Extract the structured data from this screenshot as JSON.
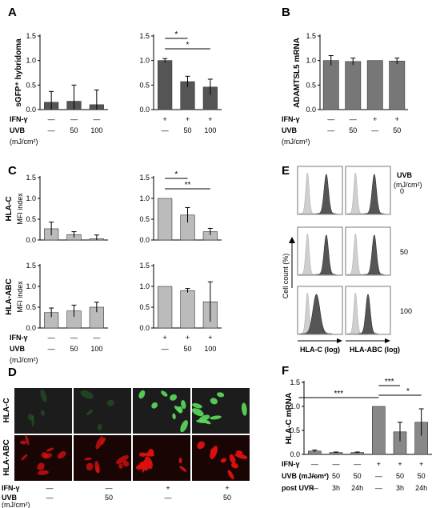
{
  "panels": {
    "A": "A",
    "B": "B",
    "C": "C",
    "D": "D",
    "E": "E",
    "F": "F"
  },
  "conditions": {
    "ifn": "IFN-γ",
    "uvb": "UVB",
    "unit": "(mJ/cm²)",
    "uvb_unit_inline": "UVB (mJ/cm²)",
    "post_uvr": "post UVR",
    "plus": "+",
    "minus": "—"
  },
  "panelA": {
    "ylabel": "sGFP⁺ hybridoma",
    "ticks": [
      "0.0",
      "0.5",
      "1.0",
      "1.5"
    ],
    "left_ifn": [
      "—",
      "—",
      "—"
    ],
    "left_uvb": [
      "—",
      "50",
      "100"
    ],
    "right_ifn": [
      "+",
      "+",
      "+"
    ],
    "right_uvb": [
      "—",
      "50",
      "100"
    ],
    "stars": [
      "*",
      "*"
    ]
  },
  "panelB": {
    "ylabel": "ADAMTSL5 mRNA",
    "ticks": [
      "0.0",
      "0.5",
      "1.0",
      "1.5"
    ],
    "ifn": [
      "—",
      "—",
      "+",
      "+"
    ],
    "uvb": [
      "—",
      "50",
      "—",
      "50"
    ]
  },
  "panelC": {
    "row1_label": "HLA-C",
    "row2_label": "HLA-ABC",
    "ylabel": "MFI index",
    "ticks": [
      "0.0",
      "0.5",
      "1.0",
      "1.5"
    ],
    "left_ifn": [
      "—",
      "—",
      "—"
    ],
    "left_uvb": [
      "—",
      "50",
      "100"
    ],
    "right_ifn": [
      "+",
      "+",
      "+"
    ],
    "right_uvb": [
      "—",
      "50",
      "100"
    ],
    "stars": [
      "*",
      "**"
    ]
  },
  "panelD": {
    "row1_label": "HLA-C",
    "row2_label": "HLA-ABC",
    "ifn": [
      "—",
      "—",
      "+",
      "+"
    ],
    "uvb": [
      "—",
      "50",
      "—",
      "50"
    ],
    "colors": {
      "green": "#2e8b2e",
      "red": "#e01010"
    }
  },
  "panelE": {
    "header": "UVB",
    "unit": "(mJ/cm²)",
    "doses": [
      "0",
      "50",
      "100"
    ],
    "ylabel": "Cell count (%)",
    "xlabel_left": "HLA-C (log)",
    "xlabel_right": "HLA-ABC (log)"
  },
  "panelF": {
    "ylabel": "HLA-C mRNA",
    "ticks": [
      "0.0",
      "0.5",
      "1.0",
      "1.5"
    ],
    "ifn": [
      "—",
      "—",
      "—",
      "+",
      "+",
      "+"
    ],
    "uvb": [
      "—",
      "50",
      "50",
      "—",
      "50",
      "50"
    ],
    "post": [
      "—",
      "3h",
      "24h",
      "—",
      "3h",
      "24h"
    ],
    "stars": [
      "***",
      "***",
      "*"
    ]
  },
  "chart_data": [
    {
      "type": "bar",
      "panel": "A-left",
      "ylabel": "sGFP⁺ hybridoma",
      "ylim": [
        0,
        1.5
      ],
      "categories": [
        "IFN-γ — / UVB —",
        "IFN-γ — / UVB 50",
        "IFN-γ — / UVB 100"
      ],
      "values": [
        0.15,
        0.17,
        0.1
      ],
      "errors": [
        0.22,
        0.33,
        0.3
      ]
    },
    {
      "type": "bar",
      "panel": "A-right",
      "ylim": [
        0,
        1.5
      ],
      "categories": [
        "IFN-γ + / UVB —",
        "IFN-γ + / UVB 50",
        "IFN-γ + / UVB 100"
      ],
      "values": [
        1.0,
        0.57,
        0.46
      ],
      "errors": [
        0.04,
        0.11,
        0.16
      ]
    },
    {
      "type": "bar",
      "panel": "B",
      "ylabel": "ADAMTSL5 mRNA",
      "ylim": [
        0,
        1.5
      ],
      "categories": [
        "— / —",
        "— / 50",
        "+ / —",
        "+ / 50"
      ],
      "values": [
        1.0,
        0.98,
        1.0,
        0.99
      ],
      "errors": [
        0.1,
        0.07,
        0.0,
        0.06
      ]
    },
    {
      "type": "bar",
      "panel": "C-HLA-C-left",
      "ylabel": "MFI index",
      "ylim": [
        0,
        1.5
      ],
      "categories": [
        "— / —",
        "— / 50",
        "— / 100"
      ],
      "values": [
        0.27,
        0.13,
        0.03
      ],
      "errors": [
        0.16,
        0.07,
        0.09
      ]
    },
    {
      "type": "bar",
      "panel": "C-HLA-C-right",
      "ylim": [
        0,
        1.5
      ],
      "categories": [
        "+ / —",
        "+ / 50",
        "+ / 100"
      ],
      "values": [
        1.0,
        0.6,
        0.2
      ],
      "errors": [
        0.0,
        0.18,
        0.08
      ]
    },
    {
      "type": "bar",
      "panel": "C-HLA-ABC-left",
      "ylabel": "MFI index",
      "ylim": [
        0,
        1.5
      ],
      "categories": [
        "— / —",
        "— / 50",
        "— / 100"
      ],
      "values": [
        0.37,
        0.41,
        0.5
      ],
      "errors": [
        0.11,
        0.14,
        0.12
      ]
    },
    {
      "type": "bar",
      "panel": "C-HLA-ABC-right",
      "ylim": [
        0,
        1.5
      ],
      "categories": [
        "+ / —",
        "+ / 50",
        "+ / 100"
      ],
      "values": [
        1.0,
        0.9,
        0.63
      ],
      "errors": [
        0.0,
        0.05,
        0.48
      ]
    },
    {
      "type": "bar",
      "panel": "F",
      "ylabel": "HLA-C mRNA",
      "ylim": [
        0,
        1.5
      ],
      "categories": [
        "— / — / —",
        "— / 50 / 3h",
        "— / 50 / 24h",
        "+ / — / —",
        "+ / 50 / 3h",
        "+ / 50 / 24h"
      ],
      "values": [
        0.07,
        0.04,
        0.04,
        1.0,
        0.47,
        0.67
      ],
      "errors": [
        0.02,
        0.01,
        0.01,
        0.0,
        0.2,
        0.28
      ]
    }
  ]
}
